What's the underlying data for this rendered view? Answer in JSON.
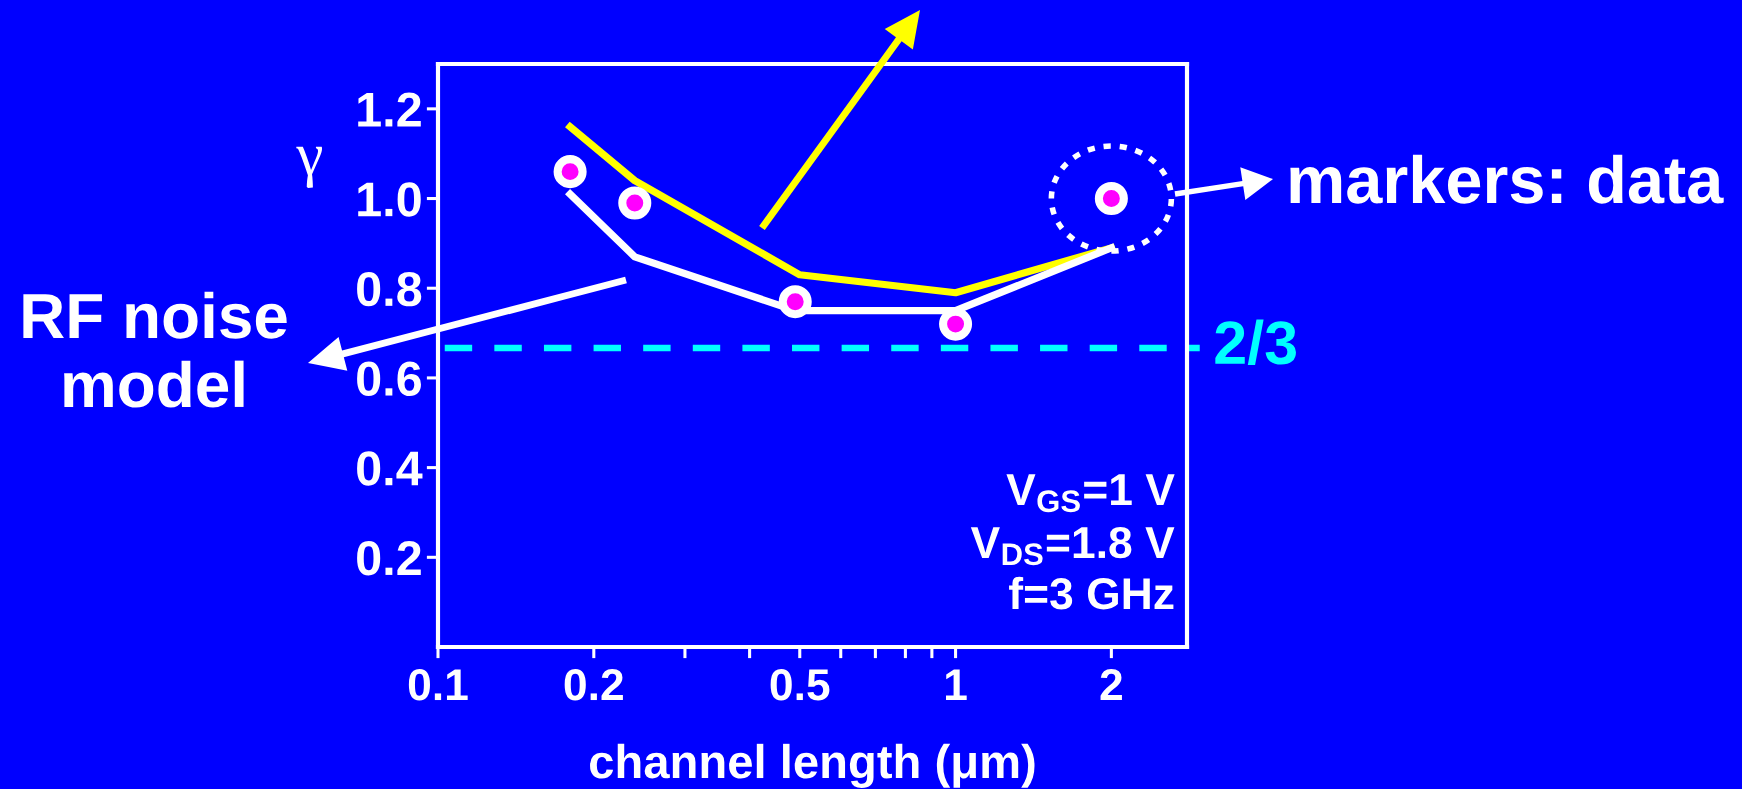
{
  "chart_data": {
    "type": "line",
    "xlabel": "channel length (μm)",
    "ylabel": "γ",
    "log": "x",
    "xlim": [
      0.1,
      2.8
    ],
    "ylim": [
      0,
      1.3
    ],
    "xticks": [
      0.1,
      0.2,
      {
        "value": 0.3,
        "label": null
      },
      {
        "value": 0.4,
        "label": null
      },
      0.5,
      {
        "value": 0.6,
        "label": null
      },
      {
        "value": 0.7,
        "label": null
      },
      {
        "value": 0.8,
        "label": null
      },
      {
        "value": 0.9,
        "label": null
      },
      1,
      2
    ],
    "yticks": [
      0.2,
      0.4,
      0.6,
      0.8,
      {
        "value": 1,
        "label": "1.0"
      },
      1.2
    ],
    "series": [
      {
        "color": "#ffff00",
        "x": [
          0.18,
          0.24,
          0.5,
          1,
          2
        ],
        "values": [
          1.16,
          1.04,
          0.83,
          0.79,
          0.89
        ]
      },
      {
        "color": "#ffffff",
        "x": [
          0.18,
          0.24,
          0.49,
          1,
          2
        ],
        "values": [
          1.01,
          0.87,
          0.75,
          0.75,
          0.89
        ]
      },
      {
        "type": "scatter",
        "marker": "circle",
        "color": "#ff00ff",
        "x": [
          0.18,
          0.24,
          0.49,
          1,
          2
        ],
        "values": [
          1.06,
          0.99,
          0.77,
          0.72,
          1.0
        ]
      }
    ],
    "ref_lines": [
      {
        "axis": "y",
        "value": 0.6667,
        "color": "#00ffff",
        "line_style": "dashed"
      }
    ],
    "annotations": [
      "RF noise\nmodel",
      "markers: data",
      "V$_{GS}$=1 V",
      "V$_{DS}$=1.8 V",
      "f=3 GHz",
      "2/3"
    ]
  }
}
